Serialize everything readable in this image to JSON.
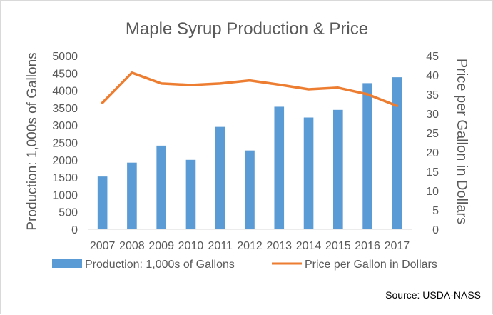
{
  "chart_data": {
    "type": "bar",
    "title": "Maple Syrup Production & Price",
    "categories": [
      "2007",
      "2008",
      "2009",
      "2010",
      "2011",
      "2012",
      "2013",
      "2014",
      "2015",
      "2016",
      "2017"
    ],
    "series": [
      {
        "name": "Production: 1,000s of Gallons",
        "type": "bar",
        "axis": "left",
        "color": "#5b9bd5",
        "values": [
          1520,
          1920,
          2410,
          2000,
          2950,
          2270,
          3530,
          3220,
          3440,
          4210,
          4380
        ]
      },
      {
        "name": "Price per Gallon in Dollars",
        "type": "line",
        "axis": "right",
        "color": "#ed7d31",
        "values": [
          32.8,
          40.6,
          37.8,
          37.4,
          37.8,
          38.6,
          37.5,
          36.3,
          36.7,
          35.0,
          32.0
        ]
      }
    ],
    "ylabel": "Production: 1,000s of Gallons",
    "ylim": [
      0,
      5000
    ],
    "yticks": [
      "0",
      "500",
      "1000",
      "1500",
      "2000",
      "2500",
      "3000",
      "3500",
      "4000",
      "4500",
      "5000"
    ],
    "y2label": "Price per Gallon in Dollars",
    "y2lim": [
      0,
      45
    ],
    "y2ticks": [
      "0",
      "5",
      "10",
      "15",
      "20",
      "25",
      "30",
      "35",
      "40",
      "45"
    ],
    "grid": false,
    "legend_position": "bottom",
    "source": "Source: USDA-NASS"
  }
}
